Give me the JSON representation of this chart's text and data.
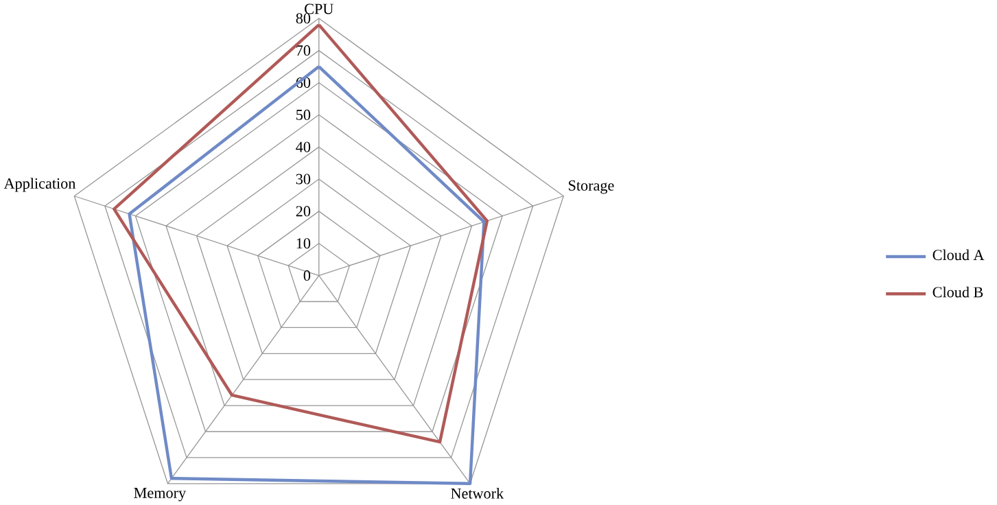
{
  "chart_data": {
    "type": "radar",
    "categories": [
      "CPU",
      "Storage",
      "Network",
      "Memory",
      "Application"
    ],
    "series": [
      {
        "name": "Cloud A",
        "color": "#6f8ac6",
        "values": [
          65,
          54,
          80,
          78,
          62
        ]
      },
      {
        "name": "Cloud B",
        "color": "#b05a58",
        "values": [
          78,
          55,
          64,
          46,
          67
        ]
      }
    ],
    "ylim": [
      0,
      80
    ],
    "yticks": [
      0,
      10,
      20,
      30,
      40,
      50,
      60,
      70,
      80
    ],
    "grid": true,
    "legend": "right",
    "marker": "none"
  }
}
